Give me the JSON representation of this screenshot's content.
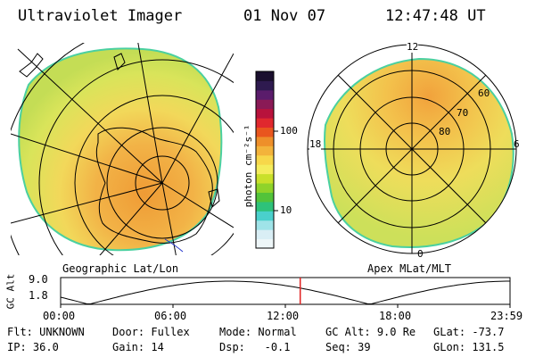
{
  "header": {
    "instrument": "Ultraviolet Imager",
    "date": "01 Nov 07",
    "time": "12:47:48 UT"
  },
  "left_panel": {
    "caption": "Geographic Lat/Lon"
  },
  "right_panel": {
    "caption": "Apex MLat/MLT",
    "mlt_labels": {
      "top": "12",
      "left": "18",
      "right": "6",
      "bottom": "0"
    },
    "lat_labels": [
      "60",
      "70",
      "80"
    ]
  },
  "colorbar": {
    "unit_label": "photon cm⁻²s⁻¹",
    "tick_labels": [
      "100",
      "10"
    ],
    "colors": [
      "#eef6f8",
      "#d9eef5",
      "#9fe3e8",
      "#4ad0cc",
      "#2ec27a",
      "#52c33a",
      "#8fd32a",
      "#c9e02a",
      "#f4ec5c",
      "#f7d74a",
      "#f3b33b",
      "#ee8f2a",
      "#e9561e",
      "#e0282e",
      "#b8123c",
      "#8a1a56",
      "#5a1c6b",
      "#2e1a4f",
      "#1a0f2e"
    ]
  },
  "timeline": {
    "axis_label": "GC Alt",
    "y_ticks": [
      "9.0",
      "1.8"
    ],
    "x_ticks": [
      "00:00",
      "06:00",
      "12:00",
      "18:00",
      "23:59"
    ],
    "marker_time": "12:47:48"
  },
  "status": {
    "row1": [
      {
        "label": "Flt:",
        "value": "UNKNOWN"
      },
      {
        "label": "Door:",
        "value": "Fullex"
      },
      {
        "label": "Mode:",
        "value": "Normal"
      },
      {
        "label": "GC Alt:",
        "value": "9.0 Re"
      },
      {
        "label": "GLat:",
        "value": "-73.7"
      }
    ],
    "row2": [
      {
        "label": "IP:",
        "value": "36.0"
      },
      {
        "label": "Gain:",
        "value": "14"
      },
      {
        "label": "Dsp:",
        "value": "-0.1"
      },
      {
        "label": "Seq:",
        "value": "39"
      },
      {
        "label": "GLon:",
        "value": "131.5"
      }
    ]
  }
}
